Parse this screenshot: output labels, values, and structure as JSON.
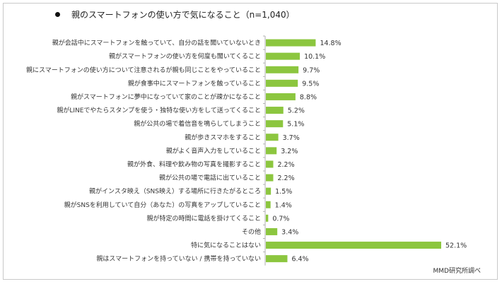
{
  "title": "親のスマートフォンの使い方で気になること（n=1,040）",
  "source": "MMD研究所調べ",
  "colors": {
    "bar": "#8cc63f",
    "axis": "#b0b0b0"
  },
  "chart_data": {
    "type": "bar",
    "orientation": "horizontal",
    "unit": "%",
    "categories": [
      "親が会話中にスマートフォンを触っていて、自分の話を聞いていないとき",
      "親がスマートフォンの使い方を何度も聞いてくること",
      "親にスマートフォンの使い方について注意されるが親も同じことをやっていること",
      "親が食事中にスマートフォンを触っていること",
      "親がスマートフォンに夢中になっていて家のことが疎かになること",
      "親がLINEでやたらスタンプを使う・独特な使い方をして送ってくること",
      "親が公共の場で着信音を鳴らしてしまうこと",
      "親が歩きスマホをすること",
      "親がよく音声入力をしていること",
      "親が外食、料理や飲み物の写真を撮影すること",
      "親が公共の場で電話に出ていること",
      "親がインスタ映え（SNS映え）する場所に行きたがるところ",
      "親がSNSを利用していて自分（あなた）の写真をアップしていること",
      "親が特定の時間に電話を掛けてくること",
      "その他",
      "特に気になることはない",
      "親はスマートフォンを持っていない / 携帯を持っていない"
    ],
    "values": [
      14.8,
      10.1,
      9.7,
      9.5,
      8.8,
      5.2,
      5.1,
      3.7,
      3.2,
      2.2,
      2.2,
      1.5,
      1.4,
      0.7,
      3.4,
      52.1,
      6.4
    ],
    "value_labels": [
      "14.8%",
      "10.1%",
      "9.7%",
      "9.5%",
      "8.8%",
      "5.2%",
      "5.1%",
      "3.7%",
      "3.2%",
      "2.2%",
      "2.2%",
      "1.5%",
      "1.4%",
      "0.7%",
      "3.4%",
      "52.1%",
      "6.4%"
    ],
    "xlim": [
      0,
      52.1
    ],
    "grid": false,
    "legend": "none"
  }
}
